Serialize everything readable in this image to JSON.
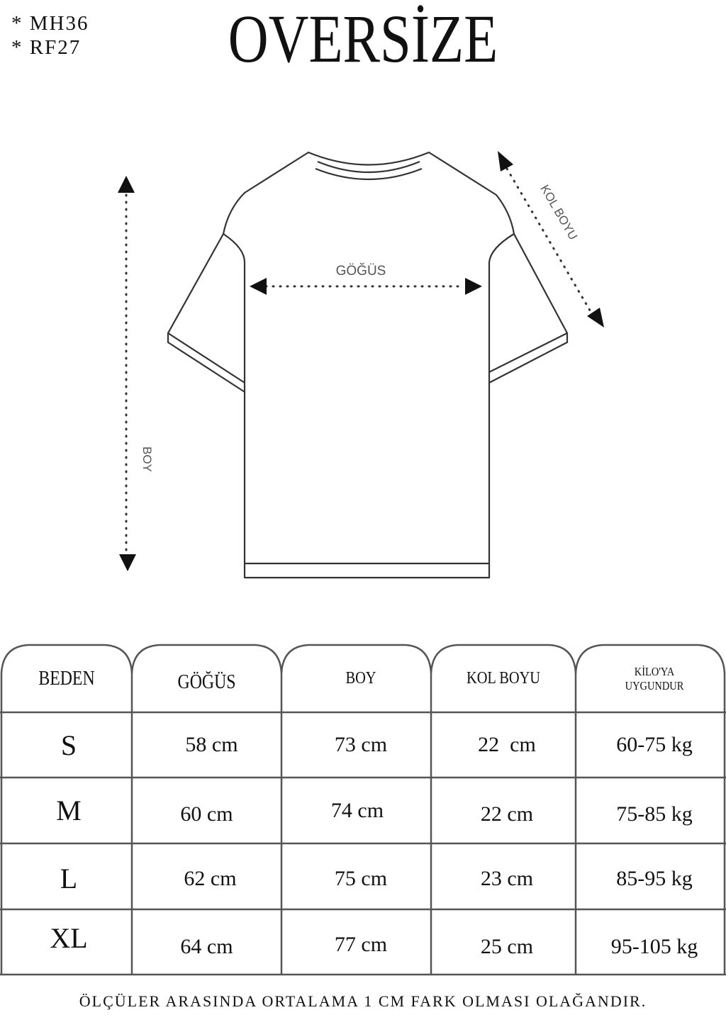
{
  "codes": [
    "* MH36",
    "* RF27"
  ],
  "title": "OVERSİZE",
  "diagram": {
    "chest_label": "GÖĞÜS",
    "length_label": "BOY",
    "sleeve_label": "KOL BOYU"
  },
  "table": {
    "headers": [
      "BEDEN",
      "GÖĞÜS",
      "BOY",
      "KOL BOYU",
      "KİLO'YA",
      "UYGUNDUR"
    ],
    "rows": [
      [
        "S",
        "58 cm",
        "73 cm",
        "22  cm",
        "60-75 kg"
      ],
      [
        "M",
        "60 cm",
        "74 cm",
        "22 cm",
        "75-85 kg"
      ],
      [
        "L",
        "62 cm",
        "75 cm",
        "23 cm",
        "85-95 kg"
      ],
      [
        "XL",
        "64 cm",
        "77 cm",
        "25 cm",
        "95-105 kg"
      ]
    ]
  },
  "footer": "ÖLÇÜLER ARASINDA ORTALAMA 1 CM FARK OLMASI OLAĞANDIR."
}
